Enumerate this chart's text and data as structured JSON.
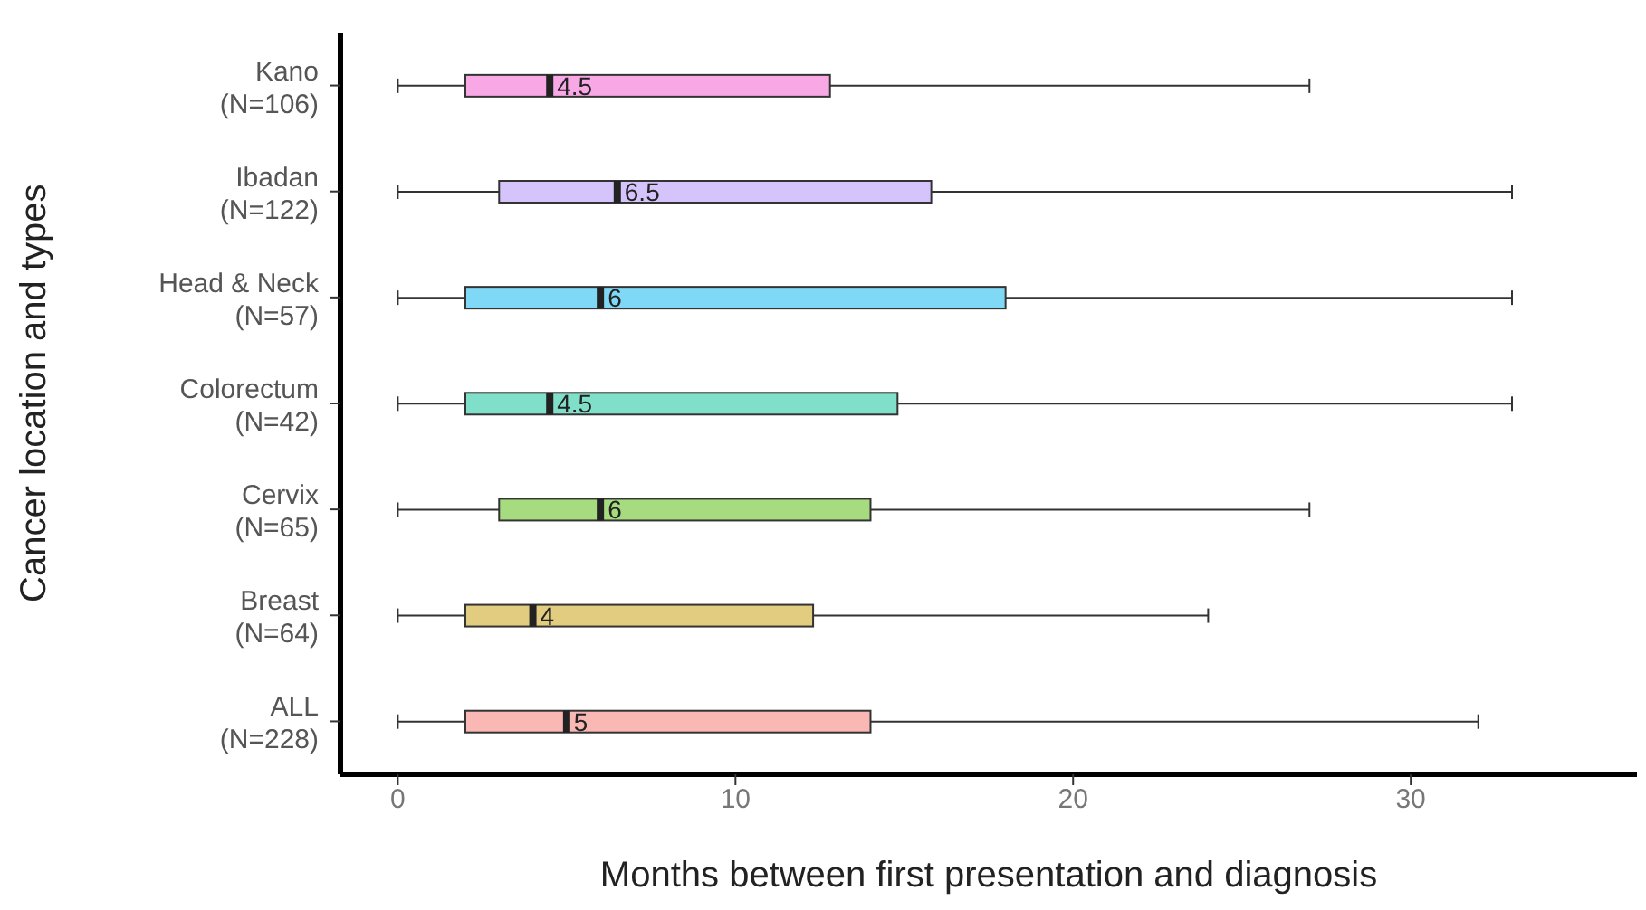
{
  "chart_data": {
    "type": "box",
    "orientation": "horizontal",
    "xlabel": "Months between first presentation and diagnosis",
    "ylabel": "Cancer location and types",
    "categories": [
      "Kano\n(N=106)",
      "Ibadan\n(N=122)",
      "Head & Neck\n(N=57)",
      "Colorectum\n(N=42)",
      "Cervix\n(N=65)",
      "Breast\n(N=64)",
      "ALL\n(N=228)"
    ],
    "colors": [
      "#f9a8e6",
      "#d4c4fb",
      "#7fd8f5",
      "#7fdfc8",
      "#a6dc7f",
      "#e2cc7f",
      "#f9b8b3"
    ],
    "boxes": [
      {
        "low": 0,
        "q1": 2,
        "median": 4.5,
        "q3": 12.8,
        "high": 27
      },
      {
        "low": 0,
        "q1": 3,
        "median": 6.5,
        "q3": 15.8,
        "high": 33
      },
      {
        "low": 0,
        "q1": 2,
        "median": 6,
        "q3": 18,
        "high": 33
      },
      {
        "low": 0,
        "q1": 2,
        "median": 4.5,
        "q3": 14.8,
        "high": 33
      },
      {
        "low": 0,
        "q1": 3,
        "median": 6,
        "q3": 14,
        "high": 27
      },
      {
        "low": 0,
        "q1": 2,
        "median": 4,
        "q3": 12.3,
        "high": 24
      },
      {
        "low": 0,
        "q1": 2,
        "median": 5,
        "q3": 14,
        "high": 32
      }
    ],
    "annotations": [
      {
        "text": "4.5",
        "x": 4.5,
        "y": "Kano\n(N=106)"
      },
      {
        "text": "6.5",
        "x": 6.5,
        "y": "Ibadan\n(N=122)"
      },
      {
        "text": "6",
        "x": 6,
        "y": "Head & Neck\n(N=57)"
      },
      {
        "text": "4.5",
        "x": 4.5,
        "y": "Colorectum\n(N=42)"
      },
      {
        "text": "6",
        "x": 6,
        "y": "Cervix\n(N=65)"
      },
      {
        "text": "4",
        "x": 4,
        "y": "Breast\n(N=64)"
      },
      {
        "text": "5",
        "x": 5,
        "y": "ALL\n(N=228)"
      }
    ],
    "xlim": [
      -1.7,
      36.7
    ],
    "xticks": [
      0,
      10,
      20,
      30
    ]
  }
}
